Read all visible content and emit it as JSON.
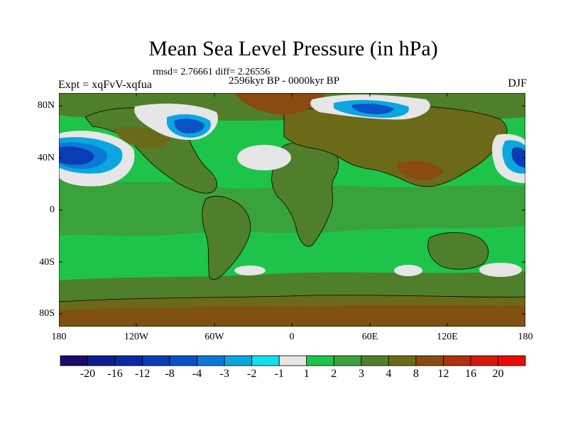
{
  "title": "Mean Sea Level Pressure (in hPa)",
  "stats": "rmsd= 2.76661 diff= 2.26556",
  "period": "2596kyr BP - 0000kyr BP",
  "experiment": "Expt = xqFvV-xqfua",
  "season": "DJF",
  "lat_labels": [
    "80N",
    "40N",
    "0",
    "40S",
    "80S"
  ],
  "lon_labels": [
    "180",
    "120W",
    "60W",
    "0",
    "60E",
    "120E",
    "180"
  ],
  "colorbar": {
    "labels": [
      "-20",
      "-16",
      "-12",
      "-8",
      "-4",
      "-3",
      "-2",
      "-1",
      "1",
      "2",
      "3",
      "4",
      "8",
      "12",
      "16",
      "20"
    ],
    "colors": [
      "#1a0a6e",
      "#0e1d8f",
      "#0a2aa3",
      "#0a3cb6",
      "#0a52c8",
      "#0c78d6",
      "#0ba6e0",
      "#10e0f0",
      "#e6e6e6",
      "#1ec44a",
      "#3aa23a",
      "#4f7f2a",
      "#6a6a18",
      "#8a4a10",
      "#b03010",
      "#d41a0a",
      "#ee0a05"
    ]
  },
  "map": {
    "ocean_base_color": "#1ec44a",
    "land_base_color": "#4f7f2a",
    "positive_high_color": "#8a4a10",
    "near_zero_color": "#e6e6e6",
    "negative_color": "#0a52c8"
  }
}
